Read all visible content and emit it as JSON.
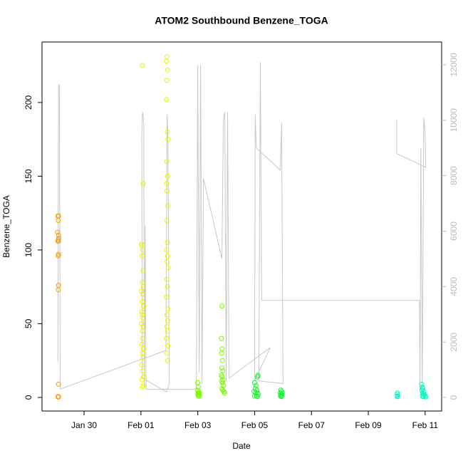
{
  "chart_data": {
    "type": "scatter",
    "title": "ATOM2 Southbound Benzene_TOGA",
    "x_label": "Date",
    "y_label": "Benzene_TOGA",
    "xlim": [
      28.52,
      42.58
    ],
    "ylim": [
      -9.2,
      241
    ],
    "y2lim": [
      -488,
      12821
    ],
    "xticks": [
      {
        "value": 30,
        "label": "Jan 30"
      },
      {
        "value": 32,
        "label": "Feb 01"
      },
      {
        "value": 34,
        "label": "Feb 03"
      },
      {
        "value": 36,
        "label": "Feb 05"
      },
      {
        "value": 38,
        "label": "Feb 07"
      },
      {
        "value": 40,
        "label": "Feb 09"
      },
      {
        "value": 42,
        "label": "Feb 11"
      }
    ],
    "yticks": [
      0,
      50,
      100,
      150,
      200
    ],
    "y2ticks": [
      0,
      2000,
      4000,
      6000,
      8000,
      10000,
      12000
    ],
    "y2_color": "#bbbbbb",
    "marker": "circle-open",
    "series": [
      {
        "color": "#ff9a00",
        "x": [
          29.08,
          29.1,
          29.09,
          29.07,
          29.1,
          29.11,
          29.09,
          29.1,
          29.08,
          29.1,
          29.09,
          29.1,
          29.09,
          29.1,
          29.08,
          29.1,
          29.09
        ],
        "values": [
          123,
          123,
          120,
          112,
          110,
          108,
          107,
          106,
          106,
          97,
          96,
          76,
          73,
          9,
          0.5,
          0.5,
          0.2
        ]
      },
      {
        "color": "#e6f500",
        "x": [
          32.05,
          32.08,
          32.02,
          32.03,
          32.06,
          32.04,
          32.07,
          32.05,
          32.08,
          32.02,
          32.06,
          32.04,
          32.09,
          32.03,
          32.05,
          32.07,
          32.02,
          32.08,
          32.04,
          32.06,
          32.03,
          32.09,
          32.05,
          32.07,
          32.02,
          32.06,
          32.1,
          32.04,
          32.08,
          32.05,
          32.92,
          32.9,
          32.94,
          32.91,
          32.9,
          32.93,
          32.95,
          32.91,
          32.94,
          32.9,
          32.92,
          32.95,
          32.91,
          32.93,
          32.9,
          32.94,
          32.92,
          32.96,
          32.91,
          32.93,
          32.9,
          32.95,
          32.92,
          32.94,
          32.91,
          32.93,
          32.9,
          32.95,
          32.92,
          32.94
        ],
        "values": [
          225,
          145,
          104,
          103,
          100,
          96,
          86,
          78,
          75,
          72,
          70,
          65,
          62,
          58,
          56,
          54,
          50,
          48,
          45,
          40,
          36,
          33,
          30,
          27,
          22,
          18,
          14,
          12,
          8,
          7,
          231,
          228,
          222,
          215,
          202,
          180,
          175,
          160,
          150,
          145,
          140,
          130,
          120,
          105,
          100,
          96,
          92,
          88,
          80,
          75,
          68,
          60,
          56,
          52,
          48,
          45,
          40,
          35,
          30,
          25
        ]
      },
      {
        "color": "#7cf500",
        "x": [
          34.0,
          34.02,
          33.99,
          34.03,
          34.01,
          34.05,
          34.0,
          34.04,
          34.02,
          34.06,
          34.85,
          34.83,
          34.86,
          34.84,
          34.87,
          34.85,
          34.88,
          34.83,
          34.86,
          34.89,
          34.84,
          34.87,
          34.9,
          34.85,
          34.88,
          34.92,
          34.94
        ],
        "values": [
          10,
          7,
          5,
          4,
          3,
          3,
          2,
          2,
          1,
          1,
          62,
          40,
          33,
          30,
          25,
          20,
          18,
          15,
          14,
          12,
          11,
          10,
          8,
          6,
          5,
          4,
          3
        ]
      },
      {
        "color": "#22f03a",
        "x": [
          36.12,
          36.1,
          36.0,
          36.05,
          36.02,
          36.08,
          35.98,
          36.1,
          36.04,
          36.13,
          36.0,
          36.07,
          36.1,
          36.92,
          36.95,
          36.9,
          36.97,
          36.93,
          36.95,
          36.91,
          36.96,
          36.94
        ],
        "values": [
          15,
          14,
          10,
          8,
          6,
          5,
          4,
          3,
          3,
          2,
          1,
          1,
          0.5,
          5,
          4,
          3,
          3,
          2,
          2,
          1,
          1,
          0.5
        ]
      },
      {
        "color": "#10f0c0",
        "x": [
          41.02,
          41.02,
          41.03,
          41.02,
          41.88,
          41.9,
          41.92,
          41.89,
          41.95,
          41.91,
          41.93,
          41.98,
          41.9,
          42.0,
          41.94,
          42.02
        ],
        "values": [
          3,
          2,
          1,
          0.5,
          9,
          7,
          6,
          5,
          4,
          3,
          2,
          2,
          1,
          1,
          0.5,
          0.3
        ]
      },
      {
        "style": "line",
        "axis": "y2",
        "color": "#c8c8c8",
        "x": [
          29.08,
          29.1,
          29.13,
          29.16,
          32.88,
          32.92,
          32.95,
          33.0,
          32.9,
          32.05,
          32.03,
          32.06,
          32.1,
          32.12,
          32.15,
          32.18,
          33.95,
          34.0,
          34.05,
          34.1,
          34.15,
          34.2,
          34.85,
          34.9,
          34.95,
          35.0,
          35.05,
          35.1,
          36.55,
          36.0,
          36.02,
          36.06,
          36.9,
          36.95,
          37.0,
          36.15,
          36.2,
          36.25,
          41.8,
          41.82,
          41.85,
          41.9,
          41.95,
          42.0,
          42.02,
          41.0,
          41.0
        ],
        "values": [
          1300,
          11200,
          11300,
          300,
          1700,
          10200,
          9400,
          500,
          200,
          700,
          9500,
          10300,
          9900,
          400,
          6200,
          300,
          300,
          12000,
          900,
          12000,
          500,
          7900,
          5000,
          10000,
          10300,
          600,
          10300,
          700,
          1800,
          600,
          10200,
          9000,
          8200,
          9900,
          500,
          600,
          12100,
          3500,
          3500,
          300,
          9000,
          200,
          10100,
          9500,
          8300,
          8800,
          10000
        ]
      }
    ]
  }
}
